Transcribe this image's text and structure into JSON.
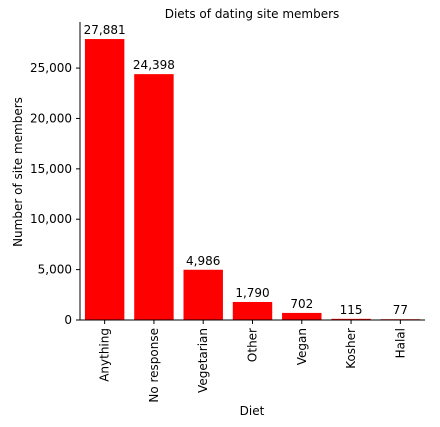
{
  "chart_data": {
    "type": "bar",
    "title": "Diets of dating site members",
    "x_label": "Diet",
    "y_label": "Number of site members",
    "categories": [
      "Anything",
      "No response",
      "Vegetarian",
      "Other",
      "Vegan",
      "Kosher",
      "Halal"
    ],
    "values": [
      27881,
      24398,
      4986,
      1790,
      702,
      115,
      77
    ],
    "value_labels": [
      "27,881",
      "24,398",
      "4,986",
      "1,790",
      "702",
      "115",
      "77"
    ],
    "color": "#ff0000",
    "ylim": [
      0,
      29275
    ],
    "yticks": [
      0,
      {
        "value": 5000,
        "label": "5,000"
      },
      {
        "value": 10000,
        "label": "10,000"
      },
      {
        "value": 15000,
        "label": "15,000"
      },
      {
        "value": 20000,
        "label": "20,000"
      },
      {
        "value": 25000,
        "label": "25,000"
      }
    ]
  }
}
